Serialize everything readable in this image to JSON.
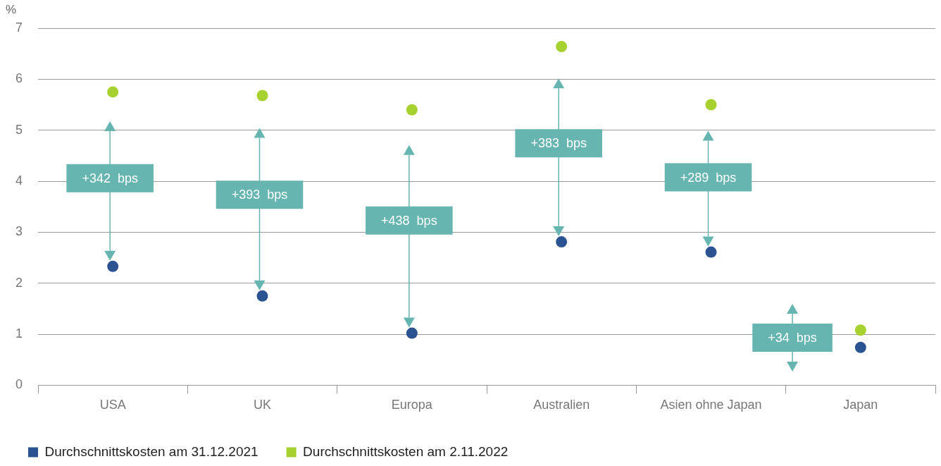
{
  "chart_data": {
    "type": "scatter",
    "ylabel": "%",
    "categories": [
      "USA",
      "UK",
      "Europa",
      "Australien",
      "Asien ohne Japan",
      "Japan"
    ],
    "series": [
      {
        "name": "Durchschnittskosten am 31.12.2021",
        "color": "#2b5291",
        "values": [
          2.33,
          1.75,
          1.02,
          2.81,
          2.61,
          0.74
        ]
      },
      {
        "name": "Durchschnittskosten am 2.11.2022",
        "color": "#a7d12e",
        "values": [
          5.75,
          5.68,
          5.4,
          6.64,
          5.5,
          1.08
        ]
      }
    ],
    "ylim": [
      0,
      7
    ],
    "yticks": [
      0,
      1,
      2,
      3,
      4,
      5,
      6,
      7
    ],
    "grid": "y",
    "legend": "bottom",
    "marker": "circle",
    "annotations": [
      "+342  bps",
      "+393  bps",
      "+438  bps",
      "+383  bps",
      "+289  bps",
      "+34  bps"
    ]
  }
}
